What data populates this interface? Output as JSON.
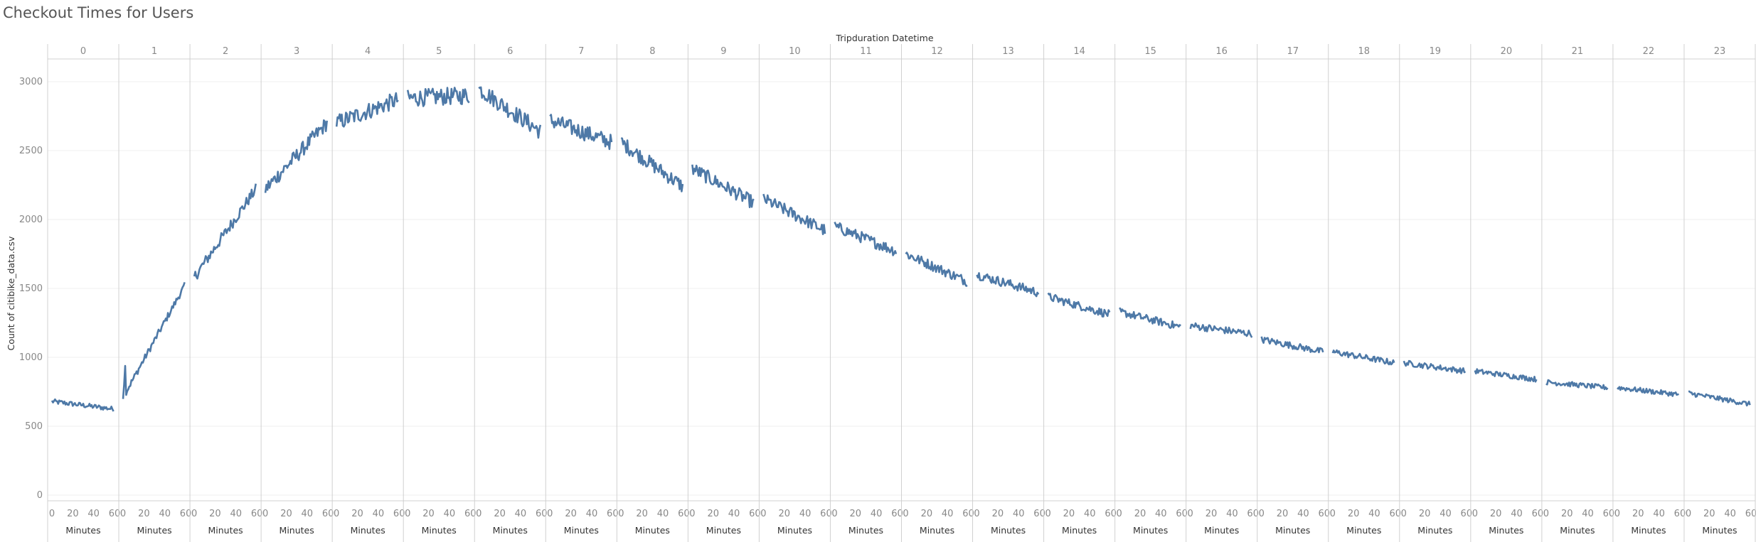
{
  "title": "Checkout Times for Users",
  "chart_data": {
    "type": "line",
    "title": "Checkout Times for Users",
    "column_header": "Tripduration Datetime",
    "ylabel": "Count of citibike_data.csv",
    "xlabel": "Minutes",
    "ylim": [
      0,
      3000
    ],
    "y_ticks": [
      0,
      500,
      1000,
      1500,
      2000,
      2500,
      3000
    ],
    "x_ticks": [
      0,
      20,
      40,
      60
    ],
    "xlim": [
      0,
      59
    ],
    "grid": true,
    "color": "#4e79a7",
    "panels": [
      {
        "hour": "0",
        "start": 680,
        "end": 625
      },
      {
        "hour": "1",
        "start": 710,
        "end": 1520
      },
      {
        "hour": "2",
        "start": 1580,
        "end": 2220
      },
      {
        "hour": "3",
        "start": 2220,
        "end": 2700
      },
      {
        "hour": "4",
        "start": 2700,
        "end": 2870
      },
      {
        "hour": "5",
        "start": 2880,
        "end": 2900
      },
      {
        "hour": "6",
        "start": 2950,
        "end": 2640
      },
      {
        "hour": "7",
        "start": 2720,
        "end": 2560
      },
      {
        "hour": "8",
        "start": 2560,
        "end": 2240
      },
      {
        "hour": "9",
        "start": 2370,
        "end": 2120
      },
      {
        "hour": "10",
        "start": 2150,
        "end": 1920
      },
      {
        "hour": "11",
        "start": 1950,
        "end": 1770
      },
      {
        "hour": "12",
        "start": 1750,
        "end": 1550
      },
      {
        "hour": "13",
        "start": 1600,
        "end": 1470
      },
      {
        "hour": "14",
        "start": 1440,
        "end": 1310
      },
      {
        "hour": "15",
        "start": 1330,
        "end": 1220
      },
      {
        "hour": "16",
        "start": 1230,
        "end": 1170
      },
      {
        "hour": "17",
        "start": 1130,
        "end": 1040
      },
      {
        "hour": "18",
        "start": 1040,
        "end": 960
      },
      {
        "hour": "19",
        "start": 960,
        "end": 900
      },
      {
        "hour": "20",
        "start": 900,
        "end": 840
      },
      {
        "hour": "21",
        "start": 820,
        "end": 780
      },
      {
        "hour": "22",
        "start": 780,
        "end": 730
      },
      {
        "hour": "23",
        "start": 740,
        "end": 660
      }
    ]
  }
}
